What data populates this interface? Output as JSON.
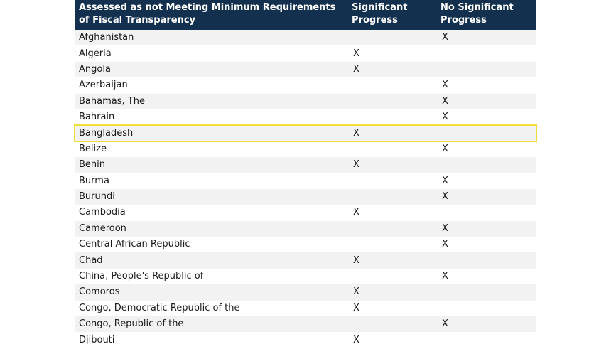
{
  "table": {
    "headers": {
      "country": "Assessed as not Meeting Minimum Requirements of Fiscal Transparency",
      "significant": "Significant Progress",
      "no_significant": "No Significant Progress"
    },
    "highlight_color": "#f2dc3c",
    "header_color": "#14304f",
    "rows": [
      {
        "country": "Afghanistan",
        "significant": "",
        "no_significant": "X"
      },
      {
        "country": "Algeria",
        "significant": "X",
        "no_significant": ""
      },
      {
        "country": "Angola",
        "significant": "X",
        "no_significant": ""
      },
      {
        "country": "Azerbaijan",
        "significant": "",
        "no_significant": "X"
      },
      {
        "country": "Bahamas, The",
        "significant": "",
        "no_significant": "X"
      },
      {
        "country": "Bahrain",
        "significant": "",
        "no_significant": "X"
      },
      {
        "country": "Bangladesh",
        "significant": "X",
        "no_significant": "",
        "highlighted": true
      },
      {
        "country": "Belize",
        "significant": "",
        "no_significant": "X"
      },
      {
        "country": "Benin",
        "significant": "X",
        "no_significant": ""
      },
      {
        "country": "Burma",
        "significant": "",
        "no_significant": "X"
      },
      {
        "country": "Burundi",
        "significant": "",
        "no_significant": "X"
      },
      {
        "country": "Cambodia",
        "significant": "X",
        "no_significant": ""
      },
      {
        "country": "Cameroon",
        "significant": "",
        "no_significant": "X"
      },
      {
        "country": "Central African Republic",
        "significant": "",
        "no_significant": "X"
      },
      {
        "country": "Chad",
        "significant": "X",
        "no_significant": ""
      },
      {
        "country": "China, People's Republic of",
        "significant": "",
        "no_significant": "X"
      },
      {
        "country": "Comoros",
        "significant": "X",
        "no_significant": ""
      },
      {
        "country": "Congo, Democratic Republic of the",
        "significant": "X",
        "no_significant": ""
      },
      {
        "country": "Congo, Republic of the",
        "significant": "",
        "no_significant": "X"
      },
      {
        "country": "Djibouti",
        "significant": "X",
        "no_significant": ""
      }
    ]
  }
}
